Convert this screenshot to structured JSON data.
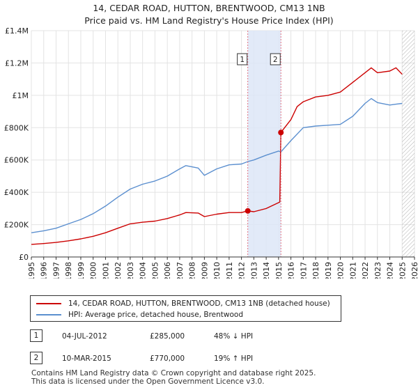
{
  "title_line1": "14, CEDAR ROAD, HUTTON, BRENTWOOD, CM13 1NB",
  "title_line2": "Price paid vs. HM Land Registry's House Price Index (HPI)",
  "colors": {
    "property": "#cc0000",
    "hpi": "#5b8fcf",
    "shade": "#dde6f7",
    "marker_line": "#e07080"
  },
  "legend": {
    "property_label": "14, CEDAR ROAD, HUTTON, BRENTWOOD, CM13 1NB (detached house)",
    "hpi_label": "HPI: Average price, detached house, Brentwood"
  },
  "transactions": [
    {
      "num": "1",
      "date": "04-JUL-2012",
      "price": "£285,000",
      "hpi": "48% ↓ HPI"
    },
    {
      "num": "2",
      "date": "10-MAR-2015",
      "price": "£770,000",
      "hpi": "19% ↑ HPI"
    }
  ],
  "footer_line1": "Contains HM Land Registry data © Crown copyright and database right 2025.",
  "footer_line2": "This data is licensed under the Open Government Licence v3.0.",
  "chart_data": {
    "type": "line",
    "xlim": [
      1995,
      2026
    ],
    "ylim": [
      0,
      1400000
    ],
    "yticks": [
      0,
      200000,
      400000,
      600000,
      800000,
      1000000,
      1200000,
      1400000
    ],
    "ytick_labels": [
      "£0",
      "£200K",
      "£400K",
      "£600K",
      "£800K",
      "£1M",
      "£1.2M",
      "£1.4M"
    ],
    "xticks": [
      "1995",
      "1996",
      "1997",
      "1998",
      "1999",
      "2000",
      "2001",
      "2002",
      "2003",
      "2004",
      "2005",
      "2006",
      "2007",
      "2008",
      "2009",
      "2010",
      "2011",
      "2012",
      "2013",
      "2014",
      "2015",
      "2016",
      "2017",
      "2018",
      "2019",
      "2020",
      "2021",
      "2022",
      "2023",
      "2024",
      "2025",
      "2026"
    ],
    "shaded_region": [
      2012.51,
      2015.19
    ],
    "hatched_region": [
      2025.0,
      2026.0
    ],
    "markers": [
      {
        "label": "1",
        "x": 2012.51,
        "y": 285000
      },
      {
        "label": "2",
        "x": 2015.19,
        "y": 770000
      }
    ],
    "series": [
      {
        "name": "14, CEDAR ROAD, HUTTON, BRENTWOOD, CM13 1NB (detached house)",
        "x": [
          1995,
          1996,
          1997,
          1998,
          1999,
          2000,
          2001,
          2002,
          2003,
          2004,
          2005,
          2006,
          2007,
          2007.5,
          2008.5,
          2009,
          2010,
          2011,
          2012,
          2012.51,
          2013,
          2014,
          2015.1,
          2015.19,
          2016,
          2016.5,
          2017,
          2018,
          2019,
          2020,
          2021,
          2022,
          2022.5,
          2023,
          2024,
          2024.5,
          2025
        ],
        "values": [
          78000,
          83000,
          90000,
          100000,
          112000,
          128000,
          150000,
          178000,
          205000,
          215000,
          222000,
          238000,
          260000,
          275000,
          272000,
          250000,
          265000,
          275000,
          275000,
          285000,
          280000,
          300000,
          340000,
          770000,
          850000,
          930000,
          960000,
          990000,
          1000000,
          1020000,
          1080000,
          1140000,
          1170000,
          1140000,
          1150000,
          1170000,
          1130000
        ]
      },
      {
        "name": "HPI: Average price, detached house, Brentwood",
        "x": [
          1995,
          1996,
          1997,
          1998,
          1999,
          2000,
          2001,
          2002,
          2003,
          2004,
          2005,
          2006,
          2007,
          2007.5,
          2008.5,
          2009,
          2010,
          2011,
          2012,
          2012.51,
          2013,
          2014,
          2015,
          2015.19,
          2016,
          2017,
          2018,
          2019,
          2020,
          2021,
          2022,
          2022.5,
          2023,
          2024,
          2024.5,
          2025
        ],
        "values": [
          150000,
          162000,
          178000,
          205000,
          232000,
          268000,
          315000,
          370000,
          420000,
          450000,
          470000,
          500000,
          545000,
          565000,
          550000,
          505000,
          545000,
          570000,
          575000,
          590000,
          600000,
          630000,
          655000,
          650000,
          720000,
          800000,
          810000,
          815000,
          820000,
          870000,
          950000,
          980000,
          955000,
          940000,
          945000,
          950000
        ]
      }
    ]
  }
}
